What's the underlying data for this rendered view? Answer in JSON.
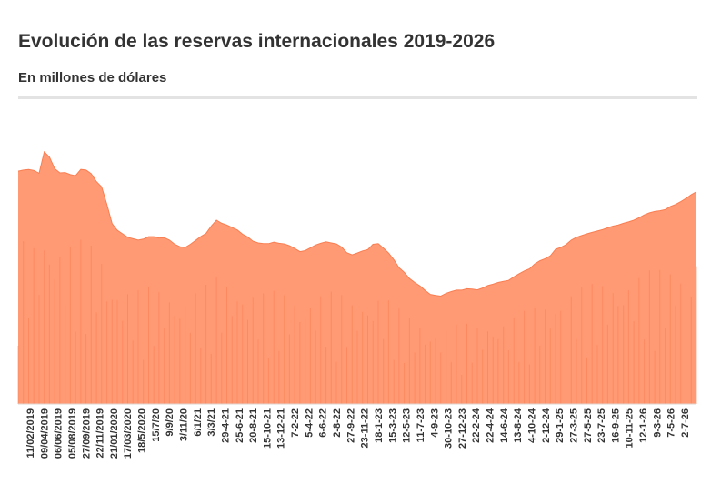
{
  "header": {
    "title": "Evolución de las reservas internacionales 2019-2026",
    "subtitle": "En millones de dólares"
  },
  "chart_data": {
    "type": "area",
    "title": "Evolución de las reservas internacionales 2019-2026",
    "subtitle": "En millones de dólares",
    "xlabel": "",
    "ylabel": "",
    "y_axis_visible": false,
    "grid": false,
    "legend": "none",
    "fill_color": "#ff9a74",
    "line_color": "#f97e52",
    "x_tick_labels": [
      "11/02/2019",
      "09/04/2019",
      "06/06/2019",
      "05/08/2019",
      "27/09/2019",
      "22/11/2019",
      "21/01/2020",
      "17/03/2020",
      "18/5/2020",
      "15/7/20",
      "9/9/20",
      "3/11/20",
      "6/1/21",
      "3/3/21",
      "29-4-21",
      "25-6-21",
      "20-8-21",
      "15-10-21",
      "13-12-21",
      "7-2-22",
      "5-4-22",
      "6-6-22",
      "2-8-22",
      "27-9-22",
      "23-11-22",
      "18-1-23",
      "15-3-23",
      "12-5-23",
      "11-7-23",
      "4-9-23",
      "30-10-23",
      "27-12-23",
      "22-2-24",
      "22-4-24",
      "14-6-24",
      "13-8-24",
      "4-10-24",
      "2-12-24",
      "29-1-25",
      "27-3-25",
      "27-5-25",
      "23-7-25",
      "16-9-25",
      "10-11-25",
      "12-1-26",
      "9-3-26",
      "7-5-26",
      "2-7-26"
    ],
    "y_values": [
      66500,
      66800,
      67000,
      66700,
      65900,
      72000,
      70500,
      67200,
      66000,
      66100,
      65500,
      65200,
      67000,
      66800,
      65800,
      63500,
      62000,
      57000,
      51500,
      49600,
      48600,
      47600,
      47200,
      46800,
      47100,
      47800,
      47800,
      47400,
      47500,
      46800,
      45600,
      44900,
      44700,
      45600,
      46700,
      47800,
      48700,
      50800,
      52500,
      51600,
      51100,
      50400,
      49700,
      48500,
      47700,
      46500,
      46000,
      45800,
      45800,
      46200,
      45900,
      45700,
      45200,
      44400,
      43500,
      43800,
      44600,
      45400,
      45900,
      46300,
      46000,
      45700,
      44800,
      43200,
      42600,
      43100,
      43700,
      44100,
      45600,
      45800,
      44500,
      43100,
      41200,
      38900,
      37600,
      35800,
      34700,
      33700,
      32400,
      31300,
      31000,
      30800,
      31600,
      32100,
      32500,
      32500,
      32900,
      32800,
      32600,
      33100,
      33800,
      34200,
      34700,
      35000,
      35300,
      36300,
      37200,
      38000,
      38600,
      40000,
      40900,
      41500,
      42300,
      44200,
      44700,
      45500,
      46800,
      47600,
      48100,
      48600,
      49000,
      49400,
      49800,
      50300,
      50800,
      51100,
      51600,
      52000,
      52500,
      53200,
      54000,
      54600,
      55000,
      55200,
      55500,
      56400,
      57000,
      57800,
      58700,
      59800,
      60600
    ]
  }
}
